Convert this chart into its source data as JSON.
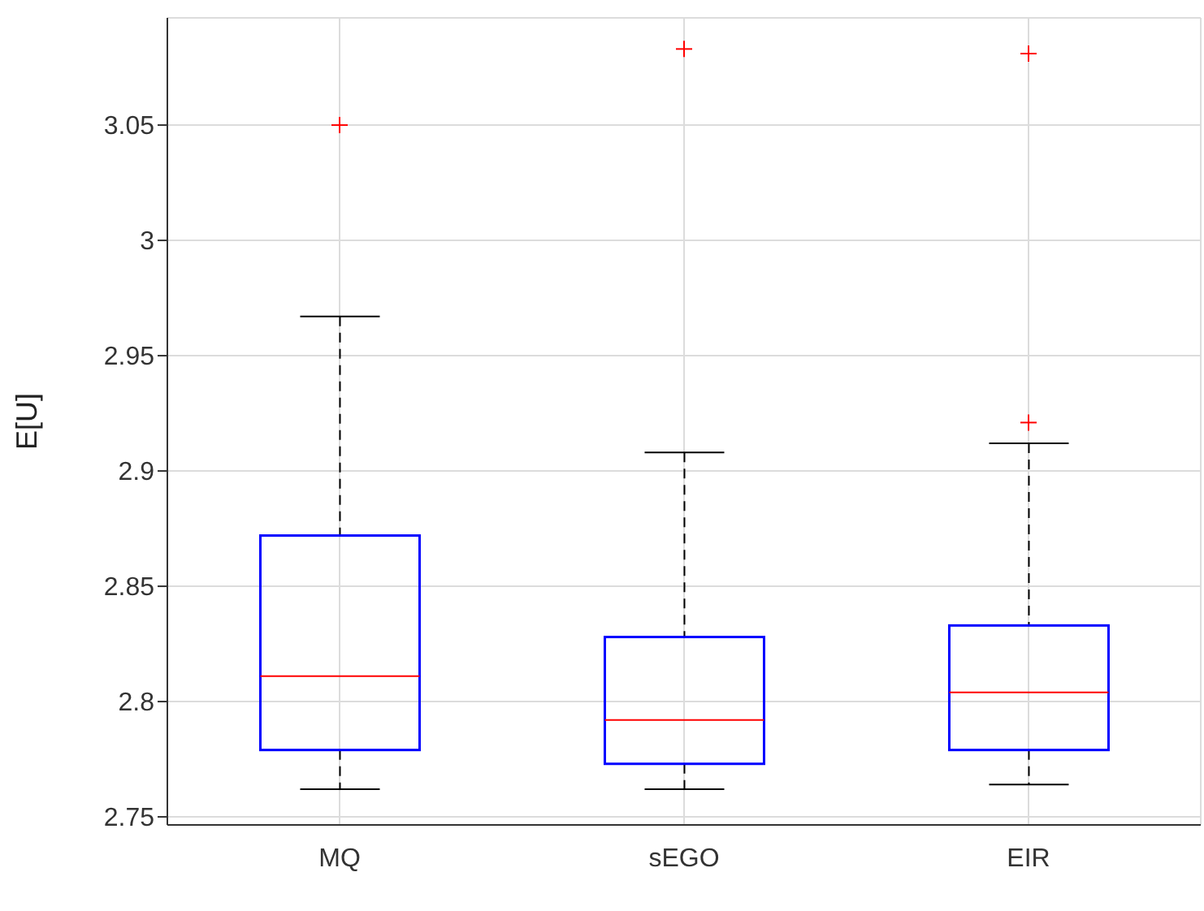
{
  "chart_data": {
    "type": "box",
    "ylabel": "E[U]",
    "categories": [
      "MQ",
      "sEGO",
      "EIR"
    ],
    "ylim": [
      2.7465,
      3.0965
    ],
    "yticks": [
      2.75,
      2.8,
      2.85,
      2.9,
      2.95,
      3,
      3.05
    ],
    "grid": true,
    "marker": "cross",
    "series": [
      {
        "color": "#0000ff",
        "boxes": [
          {
            "low": 2.762,
            "q1": 2.779,
            "median": 2.811,
            "q3": 2.872,
            "high": 2.967,
            "outliers": [
              3.05
            ]
          },
          {
            "low": 2.762,
            "q1": 2.773,
            "median": 2.792,
            "q3": 2.828,
            "high": 2.908,
            "outliers": [
              3.083
            ]
          },
          {
            "low": 2.764,
            "q1": 2.779,
            "median": 2.804,
            "q3": 2.833,
            "high": 2.912,
            "outliers": [
              2.921,
              3.081
            ]
          }
        ]
      }
    ]
  }
}
